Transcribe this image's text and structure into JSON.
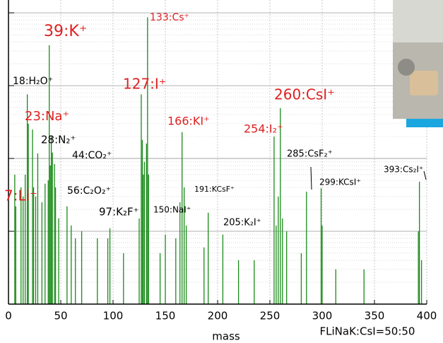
{
  "chart_data": {
    "type": "stem",
    "color": "#1a8a1a",
    "log_y": true,
    "grid": true,
    "x_label": "mass",
    "note": "FLiNaK:CsI=50:50",
    "xlim": [
      0,
      400
    ],
    "xticks": [
      0,
      50,
      100,
      150,
      200,
      250,
      300,
      350,
      400
    ],
    "ylim": [
      1,
      15000
    ],
    "yticks": [
      10,
      100,
      1000,
      10000
    ],
    "x": [
      6,
      7,
      12,
      14,
      16,
      18,
      19,
      23,
      24,
      26,
      28,
      32,
      35,
      38,
      39,
      40,
      41,
      42,
      44,
      45,
      48,
      56,
      60,
      64,
      70,
      85,
      95,
      97,
      110,
      125,
      127,
      128,
      129,
      130,
      132,
      133,
      134,
      145,
      150,
      160,
      164,
      166,
      168,
      170,
      187,
      191,
      205,
      220,
      235,
      254,
      256,
      258,
      260,
      262,
      266,
      280,
      285,
      299,
      300,
      313,
      340,
      392,
      393,
      395
    ],
    "values": [
      60,
      22,
      40,
      30,
      60,
      760,
      300,
      250,
      40,
      30,
      117,
      25,
      45,
      50,
      3600,
      80,
      200,
      120,
      84,
      40,
      15,
      22,
      12,
      8,
      10,
      8,
      8,
      11,
      5,
      15,
      760,
      180,
      60,
      90,
      160,
      8700,
      60,
      5,
      9,
      8,
      25,
      230,
      40,
      12,
      6,
      18,
      9,
      4,
      4,
      200,
      12,
      30,
      490,
      15,
      10,
      5,
      35,
      39,
      12,
      3,
      3,
      10,
      48,
      4
    ],
    "annotations": [
      {
        "text": "133:Cs⁺",
        "color": "#e02020"
      },
      {
        "text": "39:K⁺",
        "color": "#e02020"
      },
      {
        "text": "18:H₂O⁺",
        "color": "#000000"
      },
      {
        "text": "127:I⁺",
        "color": "#e02020"
      },
      {
        "text": "260:CsI⁺",
        "color": "#e02020"
      },
      {
        "text": "23:Na⁺",
        "color": "#e02020"
      },
      {
        "text": "166:KI⁺",
        "color": "#e02020"
      },
      {
        "text": "254:I₂⁺",
        "color": "#e02020"
      },
      {
        "text": "28:N₂⁺",
        "color": "#000000"
      },
      {
        "text": "44:CO₂⁺",
        "color": "#000000"
      },
      {
        "text": "285:CsF₂⁺",
        "color": "#000000"
      },
      {
        "text": "393:Cs₂I⁺",
        "color": "#000000"
      },
      {
        "text": "299:KCsI⁺",
        "color": "#000000"
      },
      {
        "text": "191:KCsF⁺",
        "color": "#000000"
      },
      {
        "text": "7:Li⁺",
        "color": "#e02020"
      },
      {
        "text": "56:C₂O₂⁺",
        "color": "#000000"
      },
      {
        "text": "150:NaI⁺",
        "color": "#000000"
      },
      {
        "text": "97:K₂F⁺",
        "color": "#000000"
      },
      {
        "text": "205:K₂I⁺",
        "color": "#000000"
      }
    ]
  }
}
